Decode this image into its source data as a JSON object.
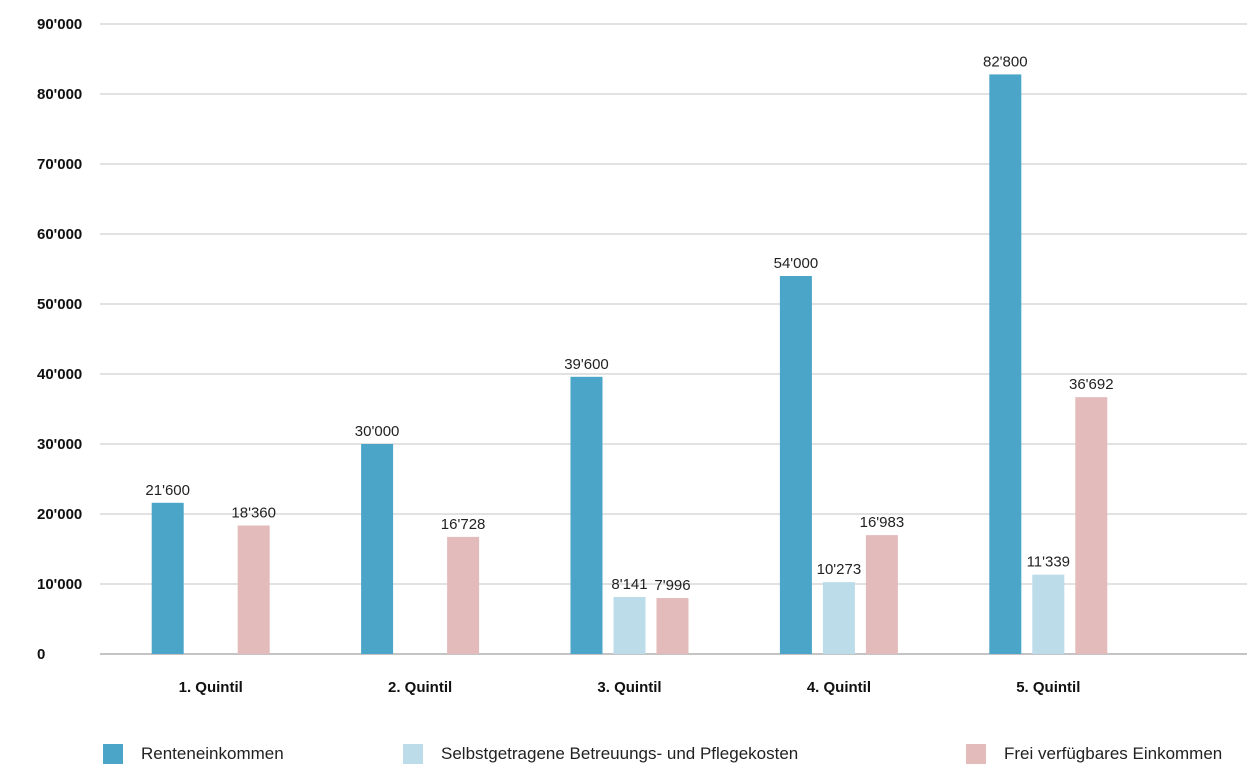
{
  "chart_data": {
    "type": "bar",
    "categories": [
      "1. Quintil",
      "2. Quintil",
      "3. Quintil",
      "4. Quintil",
      "5. Quintil"
    ],
    "series": [
      {
        "name": "Renteneinkommen",
        "color": "#4aa5c8",
        "values": [
          21600,
          30000,
          39600,
          54000,
          82800
        ],
        "labels": [
          "21'600",
          "30'000",
          "39'600",
          "54'000",
          "82'800"
        ]
      },
      {
        "name": "Selbstgetragene Betreuungs- und Pflegekosten",
        "color": "#bcdcea",
        "values": [
          null,
          null,
          8141,
          10273,
          11339
        ],
        "labels": [
          "",
          "",
          "8'141",
          "10'273",
          "11'339"
        ]
      },
      {
        "name": "Frei verfügbares Einkommen",
        "color": "#e4bbbb",
        "values": [
          18360,
          16728,
          7996,
          16983,
          36692
        ],
        "labels": [
          "18'360",
          "16'728",
          "7'996",
          "16'983",
          "36'692"
        ]
      }
    ],
    "ylim": [
      0,
      90000
    ],
    "yticks": [
      0,
      10000,
      20000,
      30000,
      40000,
      50000,
      60000,
      70000,
      80000,
      90000
    ],
    "ytick_labels": [
      "0",
      "10'000",
      "20'000",
      "30'000",
      "40'000",
      "50'000",
      "60'000",
      "70'000",
      "80'000",
      "90'000"
    ],
    "grid": true,
    "legend_position": "bottom"
  }
}
